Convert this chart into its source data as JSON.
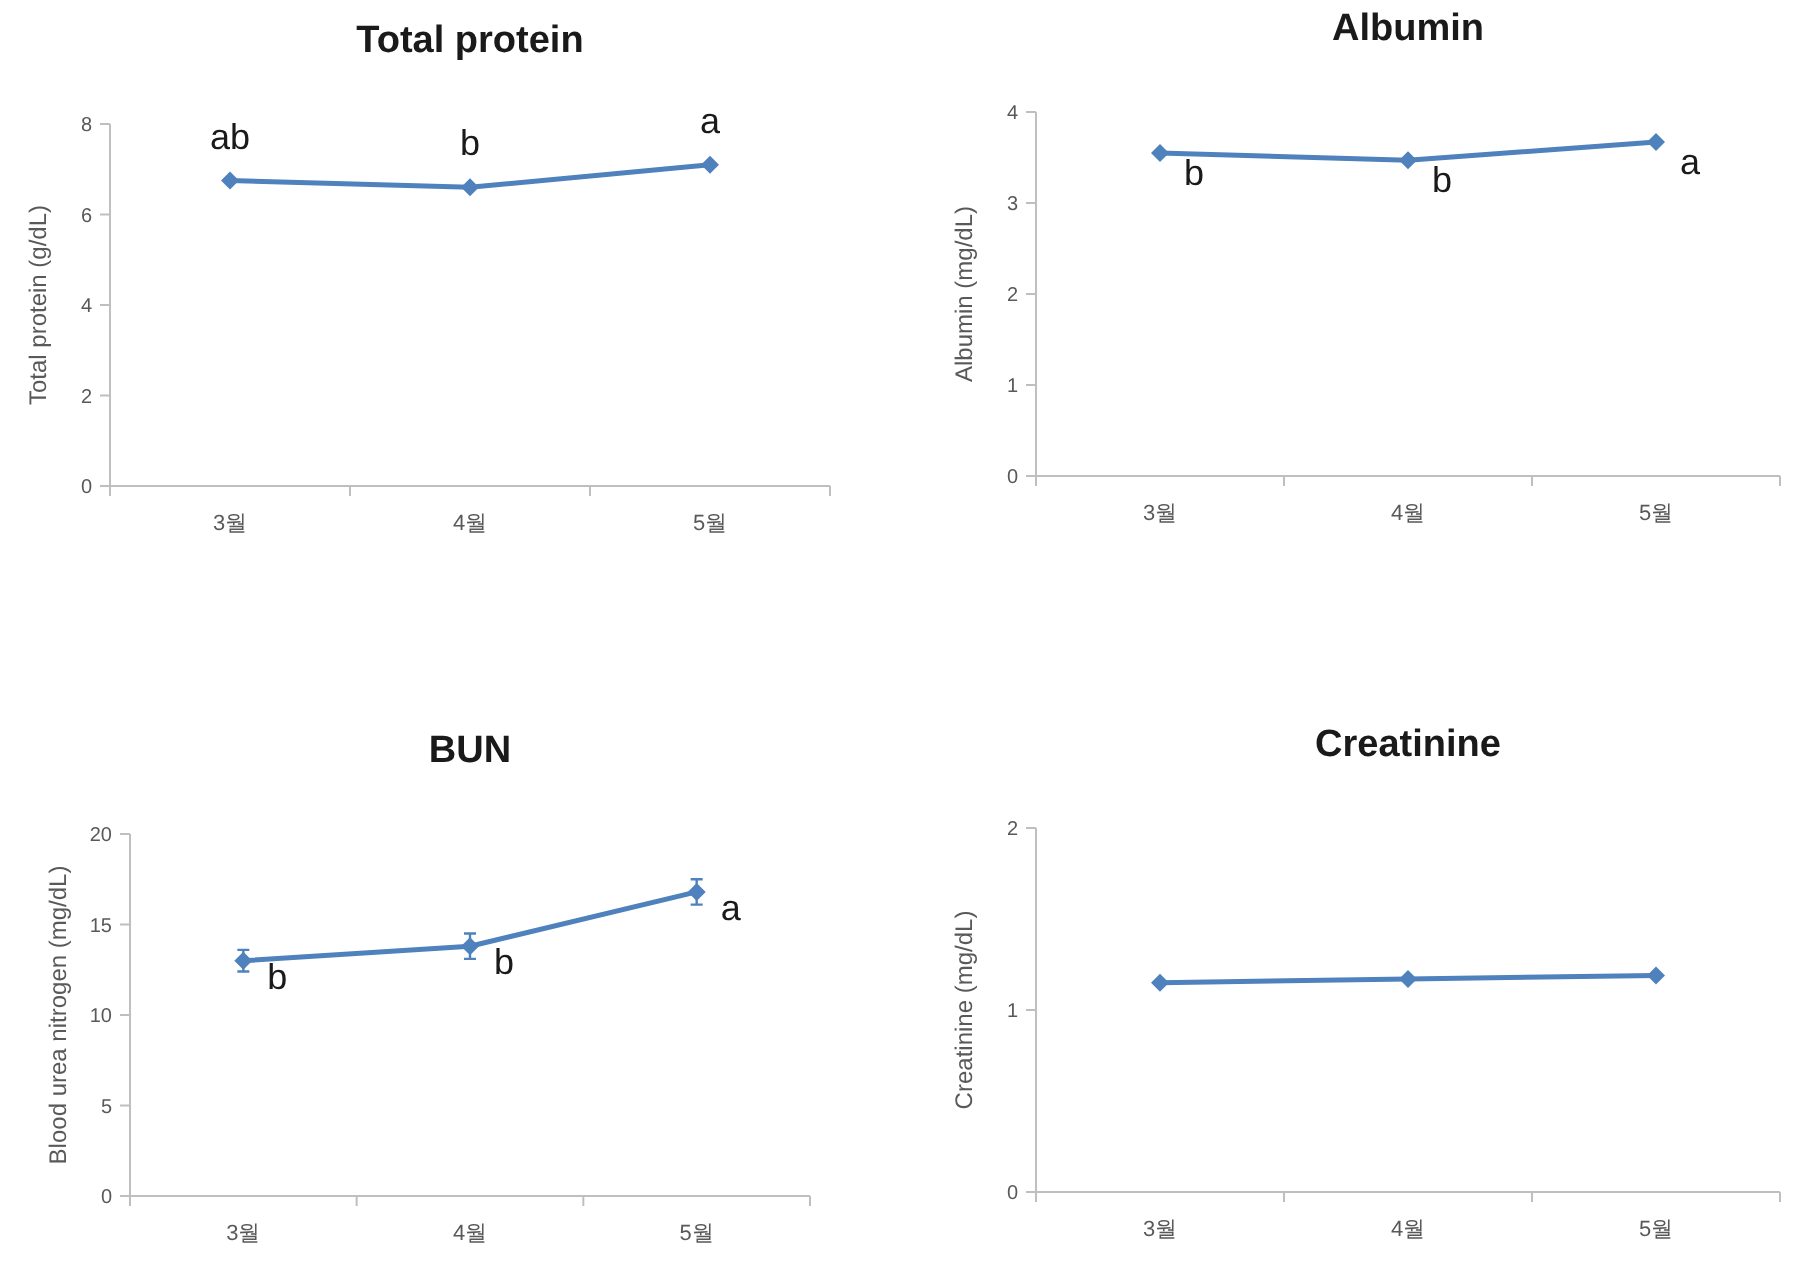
{
  "chart_data": [
    {
      "type": "line",
      "title": "Total protein",
      "ylabel": "Total protein (g/dL)",
      "categories": [
        "3월",
        "4월",
        "5월"
      ],
      "series": [
        {
          "color": "#4f81bd",
          "values": [
            6.75,
            6.6,
            7.1
          ]
        }
      ],
      "ylim": [
        0,
        8
      ],
      "yticks": [
        0,
        2,
        4,
        6,
        8
      ],
      "marker": "diamond",
      "grid": false,
      "annotations": [
        {
          "text": "ab",
          "x": "3월",
          "y": 6.75
        },
        {
          "text": "b",
          "x": "4월",
          "y": 6.6
        },
        {
          "text": "a",
          "x": "5월",
          "y": 7.1
        }
      ]
    },
    {
      "type": "line",
      "title": "Albumin",
      "ylabel": "Albumin (mg/dL)",
      "categories": [
        "3월",
        "4월",
        "5월"
      ],
      "series": [
        {
          "color": "#4f81bd",
          "values": [
            3.55,
            3.47,
            3.67
          ]
        }
      ],
      "ylim": [
        0,
        4
      ],
      "yticks": [
        0,
        1,
        2,
        3,
        4
      ],
      "marker": "diamond",
      "grid": false,
      "annotations": [
        {
          "text": "b",
          "x": "3월",
          "y": 3.55
        },
        {
          "text": "b",
          "x": "4월",
          "y": 3.47
        },
        {
          "text": "a",
          "x": "5월",
          "y": 3.67
        }
      ]
    },
    {
      "type": "line",
      "title": "BUN",
      "ylabel": "Blood urea nitrogen (mg/dL)",
      "categories": [
        "3월",
        "4월",
        "5월"
      ],
      "series": [
        {
          "color": "#4f81bd",
          "values": [
            13.0,
            13.8,
            16.8
          ],
          "errors": [
            0.6,
            0.7,
            0.7
          ]
        }
      ],
      "ylim": [
        0,
        20
      ],
      "yticks": [
        0,
        5,
        10,
        15,
        20
      ],
      "marker": "diamond",
      "grid": false,
      "annotations": [
        {
          "text": "b",
          "x": "3월",
          "y": 13.0
        },
        {
          "text": "b",
          "x": "4월",
          "y": 13.8
        },
        {
          "text": "a",
          "x": "5월",
          "y": 16.8
        }
      ]
    },
    {
      "type": "line",
      "title": "Creatinine",
      "ylabel": "Creatinine (mg/dL)",
      "categories": [
        "3월",
        "4월",
        "5월"
      ],
      "series": [
        {
          "color": "#4f81bd",
          "values": [
            1.15,
            1.17,
            1.19
          ]
        }
      ],
      "ylim": [
        0,
        2
      ],
      "yticks": [
        0,
        1,
        2
      ],
      "marker": "diamond",
      "grid": false
    }
  ]
}
